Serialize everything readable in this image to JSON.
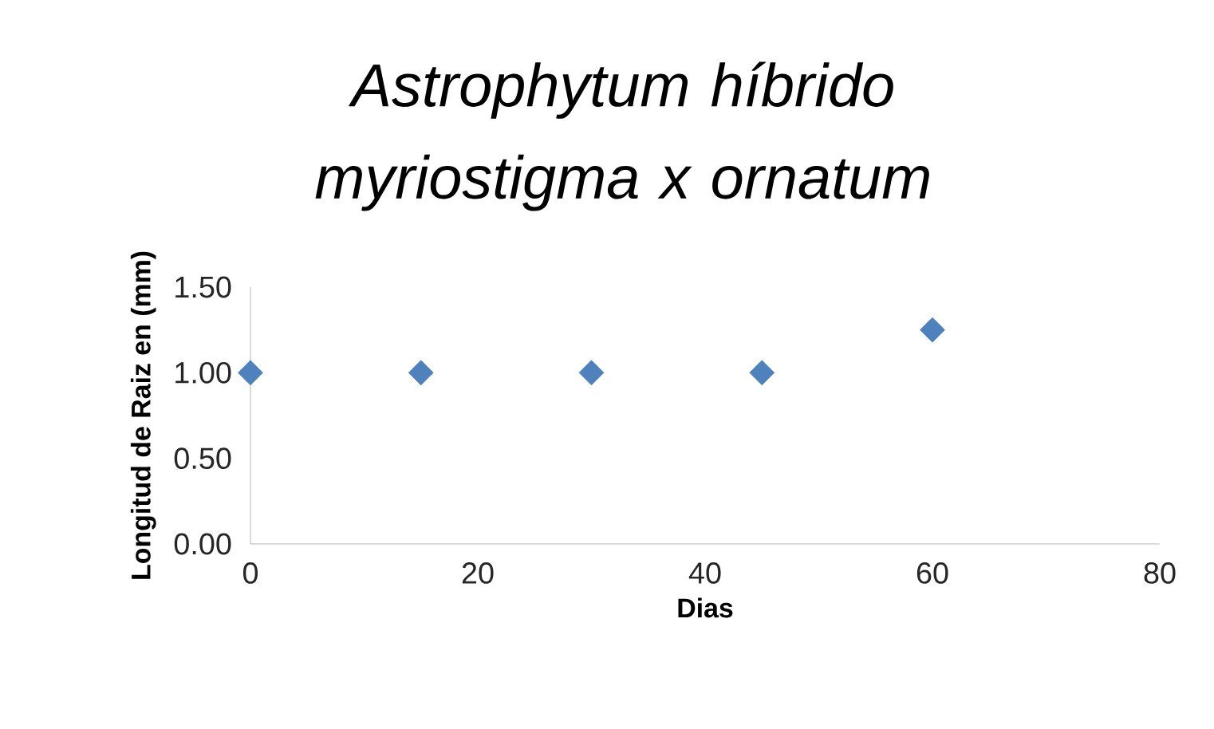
{
  "chart_data": {
    "type": "scatter",
    "title": "Astrophytum híbrido myriostigma x ornatum",
    "xlabel": "Dias",
    "ylabel": "Longitud de Raiz en (mm)",
    "series": [
      {
        "color": "#4f81bd",
        "x": [
          0,
          15,
          30,
          45,
          60
        ],
        "values": [
          1.0,
          1.0,
          1.0,
          1.0,
          1.25
        ]
      }
    ],
    "xlim": [
      0,
      80
    ],
    "xticks": [
      0,
      20,
      40,
      60,
      80
    ],
    "ylim": [
      0,
      1.5
    ],
    "yticks": [
      {
        "value": 0,
        "label": "0.00"
      },
      {
        "value": 0.5,
        "label": "0.50"
      },
      {
        "value": 1,
        "label": "1.00"
      },
      {
        "value": 1.5,
        "label": "1.50"
      }
    ],
    "marker": "diamond"
  }
}
